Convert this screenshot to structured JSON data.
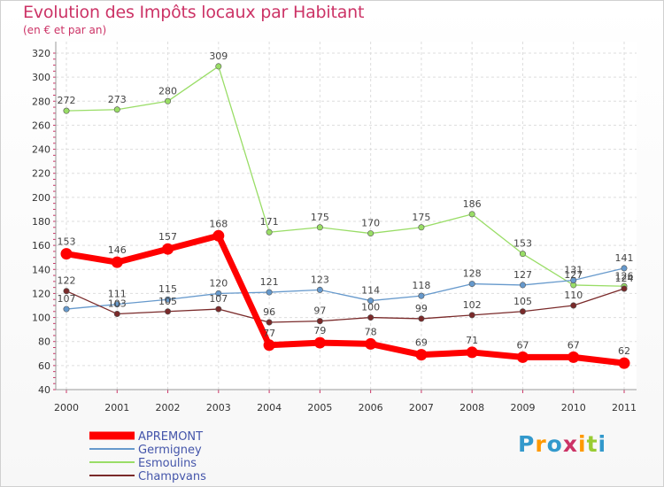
{
  "title": "Evolution des Impôts locaux par Habitant",
  "subtitle": "(en € et par an)",
  "logo": {
    "letters": [
      "P",
      "r",
      "o",
      "x",
      "i",
      "t",
      "i"
    ],
    "colors": [
      "#3399cc",
      "#ff9900",
      "#3399cc",
      "#cc3366",
      "#ff9900",
      "#99cc33",
      "#3399cc"
    ]
  },
  "chart_data": {
    "type": "line",
    "x": [
      2000,
      2001,
      2002,
      2003,
      2004,
      2005,
      2006,
      2007,
      2008,
      2009,
      2010,
      2011
    ],
    "ylim": [
      40,
      320
    ],
    "yticks": [
      40,
      60,
      80,
      100,
      120,
      140,
      160,
      180,
      200,
      220,
      240,
      260,
      280,
      300,
      320
    ],
    "grid": true,
    "legend_position": "bottom-left",
    "series": [
      {
        "name": "APREMONT",
        "color": "#ff0000",
        "width": 7,
        "values": [
          153,
          146,
          157,
          168,
          77,
          79,
          78,
          69,
          71,
          67,
          67,
          62
        ]
      },
      {
        "name": "Germigney",
        "color": "#6699cc",
        "width": 1.3,
        "values": [
          107,
          111,
          115,
          120,
          121,
          123,
          114,
          118,
          128,
          127,
          131,
          141
        ]
      },
      {
        "name": "Esmoulins",
        "color": "#99dd66",
        "width": 1.3,
        "values": [
          272,
          273,
          280,
          309,
          171,
          175,
          170,
          175,
          186,
          153,
          127,
          126
        ]
      },
      {
        "name": "Champvans",
        "color": "#7a2a2a",
        "width": 1.3,
        "values": [
          122,
          103,
          105,
          107,
          96,
          97,
          100,
          99,
          102,
          105,
          110,
          124
        ]
      }
    ]
  }
}
